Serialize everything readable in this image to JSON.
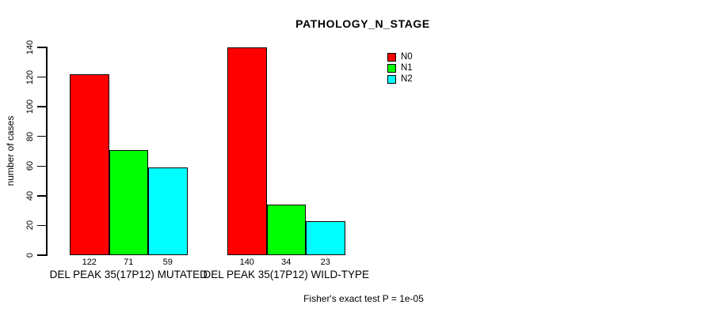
{
  "page": {
    "background": "#ffffff",
    "text_color": "#000000",
    "axis_color": "#000000"
  },
  "chart_data": {
    "type": "bar",
    "title": "PATHOLOGY_N_STAGE",
    "ylabel": "number of cases",
    "xlabel": "",
    "ylim": [
      0,
      140
    ],
    "yticks": [
      0,
      20,
      40,
      60,
      80,
      100,
      120,
      140
    ],
    "categories": [
      "DEL PEAK 35(17P12) MUTATED",
      "DEL PEAK 35(17P12) WILD-TYPE"
    ],
    "series": [
      {
        "name": "N0",
        "color": "#ff0000",
        "values": [
          122,
          140
        ]
      },
      {
        "name": "N1",
        "color": "#00ff00",
        "values": [
          71,
          34
        ]
      },
      {
        "name": "N2",
        "color": "#00ffff",
        "values": [
          59,
          23
        ]
      }
    ],
    "bar_value_labels": [
      [
        122,
        71,
        59
      ],
      [
        140,
        34,
        23
      ]
    ],
    "legend": {
      "position": "top-right",
      "entries": [
        "N0",
        "N1",
        "N2"
      ]
    },
    "annotation": "Fisher's exact test P = 1e-05",
    "grid": false,
    "tick_label_orientation": "vertical"
  }
}
